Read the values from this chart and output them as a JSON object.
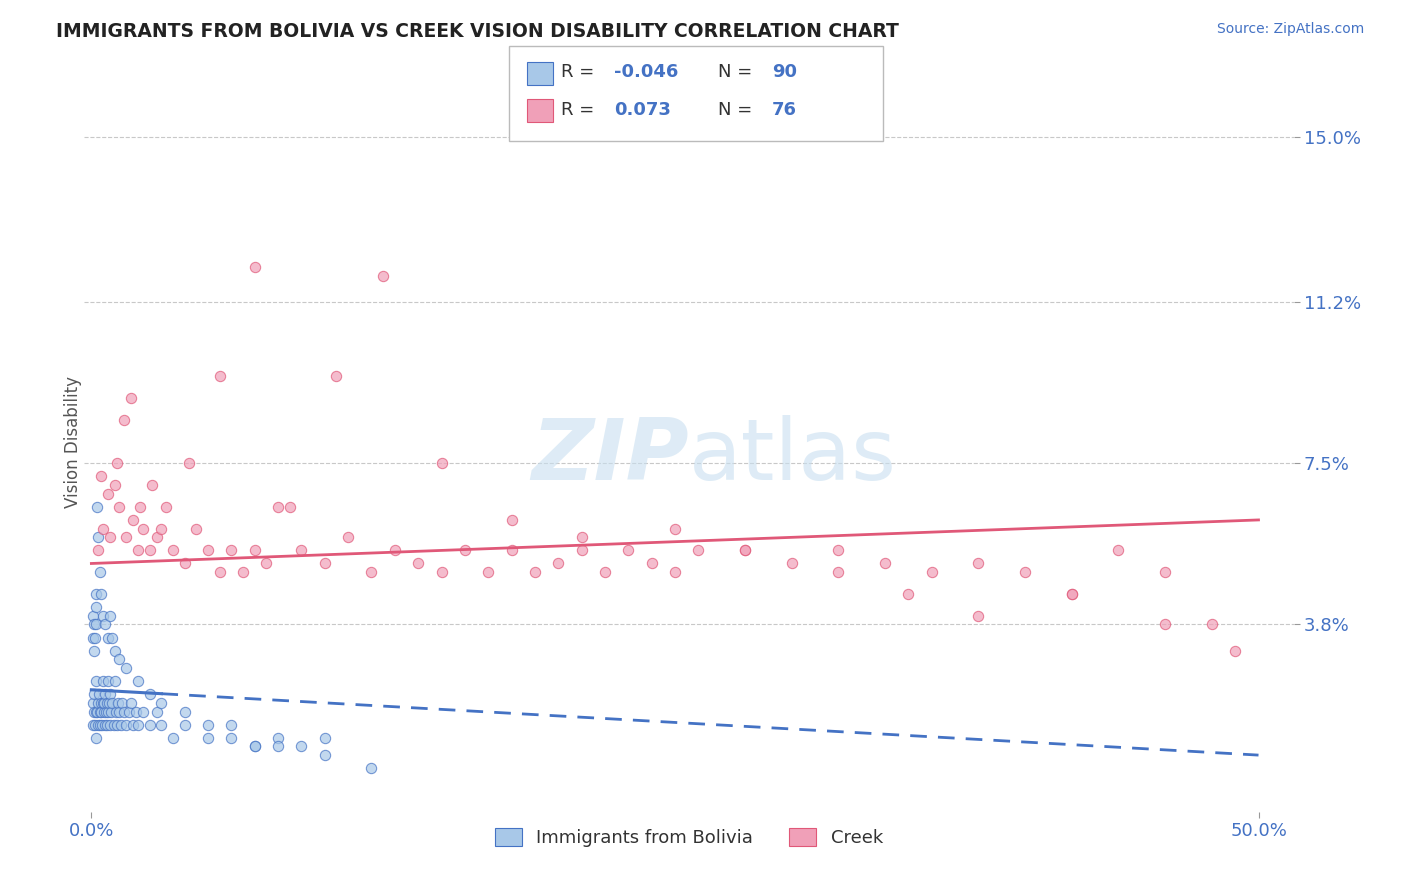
{
  "title": "IMMIGRANTS FROM BOLIVIA VS CREEK VISION DISABILITY CORRELATION CHART",
  "source": "Source: ZipAtlas.com",
  "ylabel": "Vision Disability",
  "xlim": [
    0.0,
    50.0
  ],
  "ylim": [
    0.0,
    15.5
  ],
  "yticks": [
    3.8,
    7.5,
    11.2,
    15.0
  ],
  "ytick_labels": [
    "3.8%",
    "7.5%",
    "11.2%",
    "15.0%"
  ],
  "xtick_labels": [
    "0.0%",
    "50.0%"
  ],
  "background_color": "#ffffff",
  "grid_color": "#c8c8c8",
  "series1_color": "#a8c8e8",
  "series1_line_color": "#4472c4",
  "series2_color": "#f0a0b8",
  "series2_line_color": "#e05878",
  "axis_label_color": "#4472c4",
  "title_color": "#222222",
  "title_fontsize": 13.5,
  "watermark_color": "#c8dff0",
  "scatter1_x": [
    0.05,
    0.08,
    0.1,
    0.12,
    0.15,
    0.18,
    0.2,
    0.22,
    0.25,
    0.28,
    0.3,
    0.32,
    0.35,
    0.38,
    0.4,
    0.42,
    0.45,
    0.48,
    0.5,
    0.52,
    0.55,
    0.58,
    0.6,
    0.62,
    0.65,
    0.68,
    0.7,
    0.72,
    0.75,
    0.78,
    0.8,
    0.85,
    0.9,
    0.95,
    1.0,
    1.05,
    1.1,
    1.15,
    1.2,
    1.25,
    1.3,
    1.4,
    1.5,
    1.6,
    1.7,
    1.8,
    1.9,
    2.0,
    2.2,
    2.5,
    2.8,
    3.0,
    3.5,
    4.0,
    5.0,
    6.0,
    7.0,
    8.0,
    9.0,
    10.0,
    0.05,
    0.08,
    0.1,
    0.12,
    0.15,
    0.18,
    0.2,
    0.22,
    0.25,
    0.3,
    0.35,
    0.4,
    0.5,
    0.6,
    0.7,
    0.8,
    0.9,
    1.0,
    1.2,
    1.5,
    2.0,
    2.5,
    3.0,
    4.0,
    5.0,
    6.0,
    7.0,
    8.0,
    10.0,
    12.0
  ],
  "scatter1_y": [
    1.5,
    2.0,
    1.8,
    2.2,
    1.5,
    1.8,
    2.5,
    1.2,
    1.8,
    2.0,
    1.5,
    2.2,
    1.8,
    1.5,
    2.0,
    1.8,
    1.5,
    2.0,
    2.5,
    1.8,
    2.0,
    1.5,
    2.2,
    1.8,
    2.0,
    1.5,
    2.5,
    1.8,
    2.0,
    1.5,
    2.2,
    1.8,
    2.0,
    1.5,
    2.5,
    1.8,
    1.5,
    2.0,
    1.8,
    1.5,
    2.0,
    1.8,
    1.5,
    1.8,
    2.0,
    1.5,
    1.8,
    1.5,
    1.8,
    1.5,
    1.8,
    1.5,
    1.2,
    1.5,
    1.2,
    1.5,
    1.0,
    1.2,
    1.0,
    1.2,
    3.5,
    4.0,
    3.8,
    3.2,
    3.5,
    4.2,
    3.8,
    4.5,
    6.5,
    5.8,
    5.0,
    4.5,
    4.0,
    3.8,
    3.5,
    4.0,
    3.5,
    3.2,
    3.0,
    2.8,
    2.5,
    2.2,
    2.0,
    1.8,
    1.5,
    1.2,
    1.0,
    1.0,
    0.8,
    0.5
  ],
  "scatter2_x": [
    0.3,
    0.5,
    0.8,
    1.0,
    1.2,
    1.5,
    1.8,
    2.0,
    2.2,
    2.5,
    2.8,
    3.0,
    3.5,
    4.0,
    4.5,
    5.0,
    5.5,
    6.0,
    6.5,
    7.0,
    7.5,
    8.0,
    9.0,
    10.0,
    11.0,
    12.0,
    13.0,
    14.0,
    15.0,
    16.0,
    17.0,
    18.0,
    19.0,
    20.0,
    21.0,
    22.0,
    23.0,
    24.0,
    25.0,
    26.0,
    28.0,
    30.0,
    32.0,
    34.0,
    36.0,
    38.0,
    40.0,
    42.0,
    44.0,
    46.0,
    48.0,
    0.4,
    0.7,
    1.1,
    1.4,
    1.7,
    2.1,
    2.6,
    3.2,
    4.2,
    5.5,
    7.0,
    8.5,
    10.5,
    12.5,
    15.0,
    18.0,
    21.0,
    25.0,
    28.0,
    32.0,
    35.0,
    38.0,
    42.0,
    46.0,
    49.0
  ],
  "scatter2_y": [
    5.5,
    6.0,
    5.8,
    7.0,
    6.5,
    5.8,
    6.2,
    5.5,
    6.0,
    5.5,
    5.8,
    6.0,
    5.5,
    5.2,
    6.0,
    5.5,
    5.0,
    5.5,
    5.0,
    5.5,
    5.2,
    6.5,
    5.5,
    5.2,
    5.8,
    5.0,
    5.5,
    5.2,
    5.0,
    5.5,
    5.0,
    5.5,
    5.0,
    5.2,
    5.5,
    5.0,
    5.5,
    5.2,
    5.0,
    5.5,
    5.5,
    5.2,
    5.5,
    5.2,
    5.0,
    5.2,
    5.0,
    4.5,
    5.5,
    5.0,
    3.8,
    7.2,
    6.8,
    7.5,
    8.5,
    9.0,
    6.5,
    7.0,
    6.5,
    7.5,
    9.5,
    12.0,
    6.5,
    9.5,
    11.8,
    7.5,
    6.2,
    5.8,
    6.0,
    5.5,
    5.0,
    4.5,
    4.0,
    4.5,
    3.8,
    3.2
  ],
  "trend1_x0": 0.0,
  "trend1_x1": 50.0,
  "trend1_y0": 2.3,
  "trend1_y1": 0.8,
  "trend2_x0": 0.0,
  "trend2_x1": 50.0,
  "trend2_y0": 5.2,
  "trend2_y1": 6.2
}
